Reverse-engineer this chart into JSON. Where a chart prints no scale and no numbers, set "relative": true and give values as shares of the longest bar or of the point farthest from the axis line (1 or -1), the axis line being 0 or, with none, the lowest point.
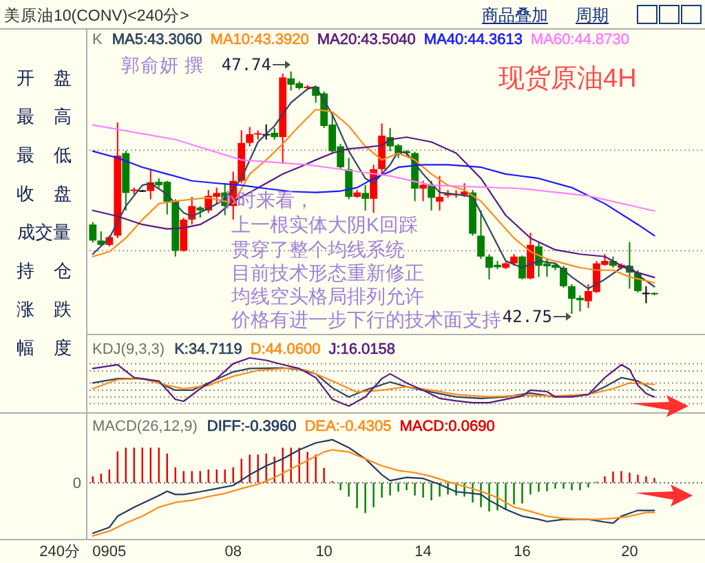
{
  "chart_data": [
    {
      "type": "candlestick",
      "title": "美原油10(CONV)<240分>",
      "subtitle": "现货原油4H",
      "legend_title": "K",
      "legend": "top left",
      "tick_labels": false,
      "categories": [
        null,
        null,
        null,
        null,
        null,
        null,
        null,
        null,
        null,
        null,
        null,
        null,
        null,
        null,
        null,
        null,
        null,
        null,
        null,
        null,
        null,
        null,
        null,
        null,
        null,
        null,
        null,
        null,
        null,
        null,
        null,
        null,
        null,
        null,
        null,
        null,
        null,
        null,
        null,
        null,
        null,
        null,
        null,
        null,
        null,
        null,
        null,
        null,
        null,
        null,
        null,
        null,
        null,
        null,
        null,
        null,
        null,
        null,
        null,
        null,
        null,
        null,
        null,
        null,
        null,
        null,
        null,
        null,
        null
      ],
      "ohlc": [
        [
          44.59,
          44.64,
          44.22,
          44.26
        ],
        [
          44.26,
          44.45,
          44.14,
          44.17
        ],
        [
          44.17,
          44.36,
          44.14,
          44.33
        ],
        [
          44.36,
          46.69,
          44.31,
          46.01
        ],
        [
          46.06,
          46.11,
          44.88,
          45.24
        ],
        [
          45.28,
          45.35,
          45.21,
          45.31
        ],
        [
          45.28,
          45.3,
          45.26,
          45.28
        ],
        [
          45.28,
          45.73,
          45.11,
          45.46
        ],
        [
          45.47,
          45.54,
          45.35,
          45.4
        ],
        [
          45.47,
          45.49,
          44.8,
          45.06
        ],
        [
          45.06,
          45.11,
          43.93,
          44.05
        ],
        [
          44.05,
          44.73,
          44.03,
          44.69
        ],
        [
          44.69,
          45.16,
          44.59,
          44.97
        ],
        [
          44.94,
          44.97,
          44.73,
          44.88
        ],
        [
          44.88,
          45.3,
          44.83,
          45.18
        ],
        [
          45.16,
          45.35,
          45.02,
          45.24
        ],
        [
          45.25,
          45.44,
          44.78,
          44.97
        ],
        [
          44.97,
          45.68,
          44.69,
          45.49
        ],
        [
          45.49,
          46.53,
          45.44,
          46.27
        ],
        [
          46.27,
          46.6,
          46.2,
          46.45
        ],
        [
          46.46,
          46.53,
          46.34,
          46.47
        ],
        [
          46.44,
          46.65,
          46.34,
          46.44
        ],
        [
          46.48,
          46.58,
          46.34,
          46.39
        ],
        [
          46.39,
          47.7,
          45.87,
          47.62
        ],
        [
          47.6,
          47.74,
          47.35,
          47.47
        ],
        [
          47.5,
          47.54,
          47.37,
          47.4
        ],
        [
          47.4,
          47.46,
          47.38,
          47.43
        ],
        [
          47.43,
          47.45,
          47.1,
          47.24
        ],
        [
          47.29,
          47.33,
          46.58,
          46.62
        ],
        [
          46.65,
          46.86,
          46.06,
          46.1
        ],
        [
          46.2,
          46.25,
          45.73,
          45.77
        ],
        [
          45.73,
          45.96,
          45.11,
          45.16
        ],
        [
          45.16,
          45.3,
          45.14,
          45.25
        ],
        [
          45.24,
          45.4,
          44.88,
          45.12
        ],
        [
          45.12,
          45.82,
          44.83,
          45.73
        ],
        [
          45.73,
          46.67,
          45.63,
          46.42
        ],
        [
          46.39,
          46.58,
          46.1,
          46.2
        ],
        [
          46.22,
          46.25,
          45.96,
          46.03
        ],
        [
          46.1,
          46.12,
          46.01,
          46.06
        ],
        [
          46.06,
          46.09,
          45.07,
          45.33
        ],
        [
          45.33,
          45.49,
          45.07,
          45.41
        ],
        [
          45.4,
          45.49,
          44.88,
          45.14
        ],
        [
          45.06,
          45.59,
          44.88,
          45.16
        ],
        [
          45.19,
          45.3,
          45.14,
          45.23
        ],
        [
          45.2,
          45.3,
          45.14,
          45.22
        ],
        [
          45.2,
          45.44,
          45.16,
          45.27
        ],
        [
          45.25,
          45.3,
          44.36,
          44.4
        ],
        [
          44.36,
          44.88,
          43.88,
          43.93
        ],
        [
          43.93,
          43.98,
          43.46,
          43.7
        ],
        [
          43.76,
          43.84,
          43.67,
          43.71
        ],
        [
          43.7,
          43.82,
          43.67,
          43.79
        ],
        [
          43.79,
          43.98,
          43.74,
          43.93
        ],
        [
          43.93,
          43.95,
          43.46,
          43.48
        ],
        [
          43.48,
          44.42,
          43.46,
          44.17
        ],
        [
          44.14,
          44.21,
          43.51,
          43.74
        ],
        [
          43.79,
          43.88,
          43.51,
          43.73
        ],
        [
          43.76,
          43.79,
          43.65,
          43.7
        ],
        [
          43.7,
          43.74,
          43.29,
          43.32
        ],
        [
          43.32,
          43.36,
          42.75,
          43.06
        ],
        [
          43.08,
          43.13,
          42.8,
          43.03
        ],
        [
          43.01,
          43.36,
          42.87,
          43.22
        ],
        [
          43.2,
          43.84,
          43.18,
          43.79
        ],
        [
          43.76,
          43.98,
          43.74,
          43.84
        ],
        [
          43.84,
          43.93,
          43.7,
          43.74
        ],
        [
          43.7,
          43.79,
          43.67,
          43.76
        ],
        [
          43.74,
          44.23,
          43.27,
          43.6
        ],
        [
          43.6,
          43.65,
          43.19,
          43.22
        ],
        [
          43.17,
          43.32,
          42.97,
          43.17
        ],
        [
          43.18,
          43.19,
          43.13,
          43.16
        ]
      ],
      "colors": [
        "#008000",
        "#008000",
        "#ff0000",
        "#ff0000",
        "#008000",
        "#ff0000",
        "#000000",
        "#ff0000",
        "#008000",
        "#008000",
        "#008000",
        "#ff0000",
        "#ff0000",
        "#008000",
        "#ff0000",
        "#ff0000",
        "#008000",
        "#ff0000",
        "#ff0000",
        "#ff0000",
        "#ff0000",
        "#000000",
        "#008000",
        "#ff0000",
        "#008000",
        "#008000",
        "#ff0000",
        "#008000",
        "#008000",
        "#008000",
        "#008000",
        "#008000",
        "#ff0000",
        "#008000",
        "#ff0000",
        "#ff0000",
        "#008000",
        "#008000",
        "#008000",
        "#008000",
        "#ff0000",
        "#008000",
        "#ff0000",
        "#ff0000",
        "#ff0000",
        "#ff0000",
        "#008000",
        "#008000",
        "#008000",
        "#008000",
        "#ff0000",
        "#ff0000",
        "#008000",
        "#ff0000",
        "#008000",
        "#008000",
        "#008000",
        "#008000",
        "#008000",
        "#008000",
        "#ff0000",
        "#ff0000",
        "#ff0000",
        "#008000",
        "#ff0000",
        "#008000",
        "#008000",
        "#000000",
        "#008000"
      ],
      "series": [
        {
          "name": "MA5:43.3060",
          "type": "line",
          "color": "#304560",
          "values": [
            43.98,
            null,
            44.31,
            null,
            44.97,
            null,
            45.4,
            45.44,
            null,
            45.21,
            null,
            44.83,
            44.76,
            null,
            44.92,
            null,
            45.11,
            null,
            45.54,
            null,
            46.29,
            null,
            46.62,
            null,
            47.1,
            null,
            47.38,
            47.43,
            null,
            46.86,
            null,
            46.1,
            null,
            45.54,
            45.44,
            null,
            45.82,
            46.1,
            46.06,
            null,
            45.63,
            null,
            45.25,
            null,
            45.21,
            null,
            45.16,
            null,
            44.5,
            null,
            43.84,
            null,
            43.7,
            null,
            43.84,
            null,
            43.79,
            null,
            43.51,
            null,
            43.27,
            null,
            43.46,
            null,
            43.7,
            43.74,
            43.55,
            null,
            43.31
          ]
        },
        {
          "name": "MA10:43.3920",
          "type": "line",
          "color": "#ff8c1a",
          "values": [
            43.93,
            null,
            44.03,
            null,
            44.31,
            null,
            44.69,
            null,
            45.02,
            null,
            45.07,
            null,
            45.11,
            null,
            45.14,
            null,
            45.07,
            45.02,
            null,
            45.63,
            null,
            45.92,
            null,
            46.25,
            null,
            46.62,
            null,
            46.96,
            null,
            46.91,
            null,
            46.62,
            null,
            46.2,
            null,
            45.92,
            null,
            46.06,
            null,
            45.92,
            null,
            45.63,
            null,
            45.4,
            null,
            45.3,
            null,
            45.07,
            null,
            44.69,
            null,
            44.31,
            null,
            44.03,
            null,
            43.88,
            null,
            43.79,
            null,
            43.7,
            null,
            43.65,
            null,
            43.65,
            null,
            43.51,
            null,
            null,
            43.39
          ]
        },
        {
          "name": "MA20:43.5040",
          "type": "line",
          "color": "#5a1a80",
          "values": [
            44.88,
            null,
            null,
            44.76,
            null,
            null,
            44.59,
            null,
            null,
            44.5,
            null,
            44.52,
            null,
            44.59,
            null,
            44.78,
            null,
            45.07,
            null,
            45.25,
            null,
            45.44,
            null,
            45.63,
            null,
            45.77,
            null,
            45.92,
            null,
            46.06,
            null,
            46.15,
            null,
            46.18,
            null,
            46.22,
            46.34,
            null,
            46.39,
            null,
            null,
            46.29,
            null,
            null,
            46.06,
            null,
            null,
            45.54,
            null,
            null,
            44.78,
            null,
            null,
            44.31,
            null,
            null,
            44.07,
            null,
            null,
            43.98,
            null,
            null,
            43.93,
            null,
            null,
            43.65,
            null,
            null,
            43.5
          ]
        },
        {
          "name": "MA40:44.3613",
          "type": "line",
          "color": "#1a1aff",
          "values": [
            46.1,
            null,
            null,
            45.96,
            null,
            null,
            45.77,
            null,
            null,
            45.63,
            null,
            null,
            45.49,
            null,
            null,
            45.44,
            null,
            null,
            45.4,
            null,
            null,
            45.33,
            null,
            null,
            45.27,
            null,
            null,
            45.25,
            null,
            null,
            45.28,
            null,
            45.35,
            null,
            45.54,
            null,
            45.68,
            45.77,
            null,
            null,
            45.82,
            null,
            null,
            45.82,
            null,
            null,
            null,
            45.77,
            null,
            null,
            45.63,
            null,
            null,
            null,
            45.54,
            null,
            null,
            null,
            45.35,
            null,
            null,
            null,
            45.02,
            null,
            null,
            null,
            44.59,
            null,
            44.36
          ]
        },
        {
          "name": "MA60:44.8730",
          "type": "line",
          "color": "#ff80ff",
          "values": [
            46.64,
            null,
            null,
            null,
            null,
            null,
            null,
            null,
            null,
            null,
            46.34,
            null,
            null,
            null,
            null,
            null,
            null,
            null,
            45.92,
            null,
            null,
            null,
            null,
            null,
            null,
            null,
            45.82,
            null,
            null,
            null,
            null,
            null,
            null,
            null,
            null,
            null,
            45.59,
            null,
            null,
            null,
            null,
            45.4,
            null,
            null,
            null,
            null,
            null,
            null,
            null,
            null,
            null,
            null,
            45.33,
            null,
            null,
            null,
            null,
            null,
            null,
            null,
            45.18,
            null,
            null,
            null,
            null,
            null,
            null,
            null,
            44.87
          ]
        }
      ],
      "ref_lines": [
        {
          "axis": "y",
          "value": 46.12,
          "label": null,
          "color": "#a0a0a0",
          "line_style": "dotted"
        },
        {
          "axis": "y",
          "value": 44.05,
          "label": null,
          "color": "#a0a0a0",
          "line_style": "dotted"
        }
      ],
      "annotations": [
        "郭俞妍  撰",
        "小时来看，",
        "上一根实体大阴K回踩",
        "贯穿了整个均线系统",
        "目前技术形态重新修正",
        "均线空头格局排列允许",
        "价格有进一步下行的技术面支持",
        "47.74",
        "42.75",
        "开 盘",
        "最 高",
        "最 低",
        "收 盘",
        "成交量",
        "持 仓",
        "涨 跌",
        "幅 度",
        "商品叠加",
        "周期"
      ]
    },
    {
      "type": "line",
      "relative": true,
      "legend_title": "KDJ(9,3,3)",
      "legend": "top left",
      "tick_labels": false,
      "categories": [
        null,
        null,
        null,
        null,
        null,
        null,
        null,
        null,
        null,
        null,
        null,
        null,
        null,
        null,
        null,
        null,
        null,
        null,
        null,
        null,
        null,
        null,
        null,
        null,
        null,
        null,
        null,
        null,
        null,
        null,
        null,
        null,
        null,
        null,
        null,
        null,
        null,
        null,
        null,
        null,
        null,
        null,
        null,
        null,
        null,
        null,
        null,
        null,
        null,
        null,
        null,
        null,
        null,
        null,
        null,
        null,
        null,
        null,
        null,
        null,
        null,
        null,
        null,
        null,
        null,
        null,
        null,
        null,
        null
      ],
      "series": [
        {
          "name": "K:34.7119",
          "color": "#304560",
          "values": [
            0.48,
            null,
            null,
            0.57,
            null,
            null,
            0.57,
            null,
            0.48,
            null,
            0.33,
            null,
            0.33,
            null,
            0.48,
            null,
            null,
            0.71,
            null,
            0.78,
            null,
            null,
            null,
            0.79,
            null,
            0.76,
            null,
            0.67,
            null,
            0.38,
            null,
            0.19,
            null,
            0.33,
            null,
            null,
            0.5,
            null,
            0.4,
            null,
            null,
            0.29,
            null,
            null,
            0.19,
            null,
            null,
            0.16,
            null,
            null,
            0.19,
            null,
            null,
            0.27,
            null,
            null,
            0.19,
            null,
            null,
            null,
            0.24,
            null,
            0.4,
            null,
            0.59,
            null,
            0.52,
            null,
            0.33
          ]
        },
        {
          "name": "D:44.0600",
          "color": "#ff8c1a",
          "values": [
            0.36,
            null,
            null,
            0.55,
            null,
            null,
            0.57,
            null,
            null,
            0.43,
            null,
            0.36,
            null,
            null,
            0.43,
            null,
            null,
            0.62,
            null,
            null,
            0.74,
            null,
            null,
            null,
            0.79,
            null,
            0.74,
            null,
            null,
            0.52,
            null,
            null,
            0.29,
            null,
            null,
            0.33,
            null,
            null,
            0.4,
            null,
            null,
            0.33,
            null,
            null,
            0.24,
            null,
            null,
            null,
            0.19,
            null,
            null,
            null,
            0.22,
            null,
            null,
            null,
            0.21,
            null,
            null,
            null,
            0.24,
            null,
            null,
            0.36,
            null,
            0.48,
            null,
            null,
            0.45
          ]
        },
        {
          "name": "J:16.0158",
          "color": "#5a1a80",
          "values": [
            0.78,
            null,
            null,
            0.86,
            null,
            0.59,
            null,
            null,
            0.52,
            null,
            0.14,
            0.1,
            null,
            0.36,
            null,
            0.57,
            null,
            0.88,
            null,
            1,
            null,
            0.95,
            null,
            0.86,
            null,
            0.78,
            null,
            0.59,
            null,
            0.14,
            null,
            0,
            null,
            0.19,
            null,
            0.57,
            0.67,
            null,
            0.48,
            null,
            0.33,
            null,
            0.16,
            null,
            0.11,
            null,
            0.07,
            null,
            0.07,
            null,
            0.14,
            null,
            0.21,
            0.33,
            null,
            0.3,
            0.19,
            null,
            0.19,
            null,
            0.24,
            null,
            0.59,
            null,
            0.86,
            0.76,
            0.43,
            0.26,
            0.19
          ]
        }
      ],
      "ref_lines": [
        {
          "axis": "y",
          "value": 0.88,
          "label": null,
          "color": "#909090",
          "line_style": "dotted"
        },
        {
          "axis": "y",
          "value": 0.73,
          "label": null,
          "color": "#909090",
          "line_style": "dotted"
        },
        {
          "axis": "y",
          "value": 0.48,
          "label": null,
          "color": "#909090",
          "line_style": "dotted"
        },
        {
          "axis": "y",
          "value": 0.33,
          "label": null,
          "color": "#909090",
          "line_style": "dotted"
        },
        {
          "axis": "y",
          "value": 0.19,
          "label": null,
          "color": "#909090",
          "line_style": "dotted"
        },
        {
          "axis": "y",
          "value": 0.05,
          "label": null,
          "color": "#909090",
          "line_style": "dotted"
        }
      ]
    },
    {
      "type": "bar",
      "relative": true,
      "legend_title": "MACD(26,12,9)",
      "legend": "top left",
      "tick_labels": "x",
      "categories": [
        null,
        null,
        "0905",
        null,
        null,
        null,
        null,
        null,
        null,
        null,
        null,
        null,
        null,
        null,
        null,
        null,
        null,
        "08",
        null,
        null,
        null,
        null,
        null,
        null,
        null,
        null,
        null,
        null,
        "10",
        null,
        null,
        null,
        null,
        null,
        null,
        null,
        null,
        null,
        null,
        null,
        "14",
        null,
        null,
        null,
        null,
        null,
        null,
        null,
        null,
        null,
        null,
        null,
        "16",
        null,
        null,
        null,
        null,
        null,
        null,
        null,
        null,
        null,
        null,
        null,
        null,
        "20",
        null,
        null,
        null
      ],
      "series": [
        {
          "name": "DIFF:-0.3960",
          "type": "line",
          "color": "#203a60",
          "values": [
            -0.95,
            null,
            -0.84,
            -0.63,
            null,
            -0.46,
            null,
            null,
            -0.24,
            -0.16,
            -0.22,
            -0.22,
            null,
            -0.17,
            null,
            -0.11,
            null,
            -0.05,
            null,
            0.15,
            null,
            0.32,
            null,
            0.45,
            null,
            0.62,
            null,
            0.75,
            null,
            0.81,
            null,
            0.66,
            null,
            0.45,
            null,
            0.15,
            0.04,
            null,
            0.1,
            null,
            0.08,
            null,
            -0.03,
            null,
            -0.17,
            null,
            -0.2,
            -0.22,
            -0.33,
            null,
            -0.5,
            null,
            -0.63,
            null,
            -0.69,
            -0.73,
            null,
            -0.69,
            null,
            null,
            -0.69,
            null,
            -0.74,
            -0.76,
            -0.63,
            null,
            -0.52,
            null,
            -0.52
          ]
        },
        {
          "name": "DEA:-0.4305",
          "type": "line",
          "color": "#ff8c1a",
          "values": [
            -1,
            null,
            -0.91,
            null,
            -0.76,
            null,
            -0.63,
            null,
            -0.46,
            null,
            -0.37,
            null,
            -0.33,
            null,
            -0.26,
            null,
            -0.2,
            null,
            -0.11,
            null,
            -0.03,
            null,
            0.1,
            null,
            0.26,
            null,
            0.42,
            null,
            0.58,
            0.62,
            null,
            0.58,
            null,
            0.45,
            null,
            0.32,
            null,
            0.23,
            null,
            0.19,
            null,
            0.12,
            null,
            0.02,
            null,
            -0.07,
            null,
            -0.16,
            null,
            -0.28,
            null,
            -0.46,
            null,
            -0.54,
            null,
            -0.63,
            null,
            -0.67,
            null,
            -0.69,
            null,
            -0.69,
            null,
            -0.67,
            null,
            -0.63,
            null,
            -0.56,
            -0.56
          ]
        },
        {
          "name": "MACD:0.0690",
          "type": "bar",
          "values": [
            0.12,
            0.17,
            0.25,
            0.59,
            0.66,
            0.66,
            0.66,
            0.66,
            0.66,
            0.55,
            0.29,
            0.22,
            0.22,
            0.22,
            0.25,
            0.25,
            0.25,
            0.29,
            0.45,
            0.53,
            0.53,
            0.55,
            0.49,
            0.66,
            0.66,
            0.66,
            0.58,
            0.53,
            0.28,
            0.03,
            -0.14,
            -0.26,
            -0.48,
            -0.57,
            -0.46,
            -0.28,
            -0.24,
            -0.17,
            -0.14,
            -0.24,
            -0.28,
            -0.33,
            -0.26,
            -0.22,
            -0.24,
            -0.26,
            -0.37,
            -0.46,
            -0.54,
            -0.52,
            -0.5,
            -0.41,
            -0.39,
            -0.22,
            -0.17,
            -0.16,
            -0.11,
            -0.11,
            -0.14,
            -0.14,
            -0.09,
            0.02,
            0.12,
            0.21,
            0.22,
            0.19,
            0.15,
            0.12,
            0.09
          ],
          "colors": [
            "#e00000",
            "#e00000",
            "#e00000",
            "#e00000",
            "#e00000",
            "#e00000",
            "#e00000",
            "#e00000",
            "#e00000",
            "#e00000",
            "#e00000",
            "#e00000",
            "#e00000",
            "#e00000",
            "#e00000",
            "#e00000",
            "#e00000",
            "#e00000",
            "#e00000",
            "#e00000",
            "#e00000",
            "#e00000",
            "#e00000",
            "#e00000",
            "#e00000",
            "#e00000",
            "#e00000",
            "#e00000",
            "#e00000",
            "#e00000",
            "#008000",
            "#008000",
            "#008000",
            "#008000",
            "#008000",
            "#008000",
            "#008000",
            "#008000",
            "#008000",
            "#008000",
            "#008000",
            "#008000",
            "#008000",
            "#008000",
            "#008000",
            "#008000",
            "#008000",
            "#008000",
            "#008000",
            "#008000",
            "#008000",
            "#008000",
            "#008000",
            "#008000",
            "#008000",
            "#008000",
            "#008000",
            "#008000",
            "#008000",
            "#008000",
            "#008000",
            "#e00000",
            "#e00000",
            "#e00000",
            "#e00000",
            "#e00000",
            "#e00000",
            "#e00000",
            "#e00000"
          ]
        }
      ],
      "ref_lines": [
        {
          "axis": "y",
          "value": 0,
          "label": "0",
          "color": "#606060",
          "line_style": "dotted"
        }
      ],
      "annotations": [
        "240分"
      ]
    }
  ]
}
